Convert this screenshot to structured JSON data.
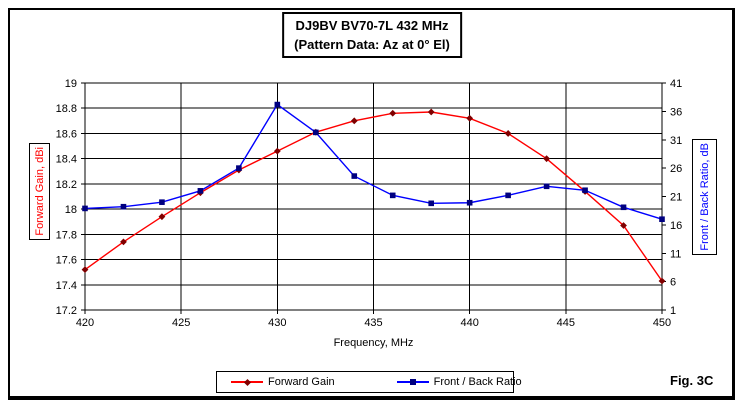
{
  "frame": {
    "fig_label": "Fig. 3C"
  },
  "title": {
    "line1": "DJ9BV BV70-7L 432 MHz",
    "line2": "(Pattern Data: Az at 0° El)"
  },
  "chart_data": {
    "type": "line",
    "xlabel": "Frequency, MHz",
    "x": [
      420,
      422,
      424,
      426,
      428,
      430,
      432,
      434,
      436,
      438,
      440,
      442,
      444,
      446,
      448,
      450
    ],
    "x_ticks": [
      420,
      425,
      430,
      435,
      440,
      445,
      450
    ],
    "xlim": [
      420,
      450
    ],
    "grid": true,
    "legend_position": "bottom",
    "left_axis": {
      "label": "Forward Gain, dBi",
      "min": 17.2,
      "max": 19.0,
      "tick_step": 0.2,
      "color": "#ff0000"
    },
    "right_axis": {
      "label": "Front / Back Ratio, dB",
      "min": 1,
      "max": 41,
      "tick_step": 5,
      "color": "#0000ff"
    },
    "series": [
      {
        "name": "Forward Gain",
        "axis": "left",
        "marker": "diamond",
        "line_color": "#ff0000",
        "marker_color": "#800000",
        "values": [
          17.52,
          17.74,
          17.94,
          18.13,
          18.31,
          18.46,
          18.61,
          18.7,
          18.76,
          18.77,
          18.72,
          18.6,
          18.4,
          18.14,
          17.87,
          17.43
        ]
      },
      {
        "name": "Front / Back Ratio",
        "axis": "right",
        "marker": "square",
        "line_color": "#0000ff",
        "marker_color": "#000080",
        "values": [
          18.9,
          19.2,
          20.0,
          22.0,
          26.0,
          37.2,
          32.3,
          24.6,
          21.2,
          19.8,
          19.9,
          21.2,
          22.8,
          22.1,
          19.1,
          17.0
        ]
      }
    ]
  }
}
